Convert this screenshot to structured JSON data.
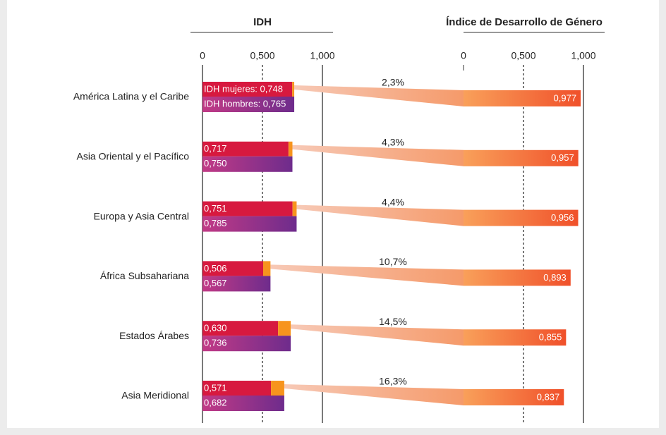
{
  "chart_data": {
    "type": "paired_bar",
    "title_left": "IDH",
    "title_right": "Índice de Desarrollo de Género",
    "categories": [
      "América Latina y el Caribe",
      "Asia Oriental y el Pacífico",
      "Europa y Asia Central",
      "África Subsahariana",
      "Estados Árabes",
      "Asia Meridional"
    ],
    "series": [
      {
        "color": "#d7193f",
        "values": [
          0.748,
          0.717,
          0.751,
          0.506,
          0.63,
          0.571
        ],
        "value_labels": [
          "IDH mujeres: 0,748",
          "0,717",
          "0,751",
          "0,506",
          "0,630",
          "0,571"
        ]
      },
      {
        "color": "#6e2c8c",
        "values": [
          0.765,
          0.75,
          0.785,
          0.567,
          0.736,
          0.682
        ],
        "value_labels": [
          "IDH hombres: 0,765",
          "0,750",
          "0,785",
          "0,567",
          "0,736",
          "0,682"
        ]
      }
    ],
    "gdi": {
      "color": "#f0502a",
      "values": [
        0.977,
        0.957,
        0.956,
        0.893,
        0.855,
        0.837
      ],
      "value_labels": [
        "0,977",
        "0,957",
        "0,956",
        "0,893",
        "0,855",
        "0,837"
      ]
    },
    "gap": {
      "color": "#f7941d",
      "values": [
        2.3,
        4.3,
        4.4,
        10.7,
        14.5,
        16.3
      ],
      "value_labels": [
        "2,3%",
        "4,3%",
        "4,4%",
        "10,7%",
        "14,5%",
        "16,3%"
      ]
    },
    "xlim": [
      0,
      1
    ],
    "xticks": [
      0,
      {
        "value": 0.5,
        "label": "0,500"
      },
      {
        "value": 1,
        "label": "1,000"
      }
    ]
  }
}
